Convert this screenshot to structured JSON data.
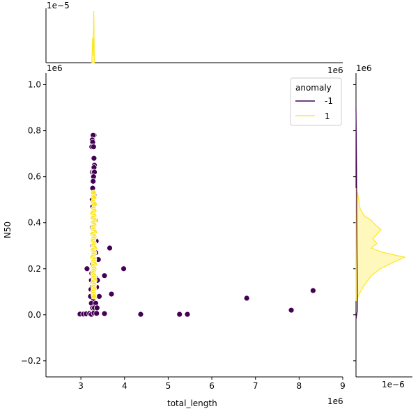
{
  "chart_data": {
    "type": "scatter",
    "xlabel": "total_length",
    "ylabel": "N50",
    "x_offset_text": "1e6",
    "y_offset_text": "1e6",
    "top_marginal_offset_text": "1e−5",
    "top_marginal_x_offset_text": "1e6",
    "right_marginal_offset_text": "1e−6",
    "right_marginal_y_offset_text": "1e6",
    "xlim": [
      2.2,
      9.0
    ],
    "ylim": [
      -0.27,
      1.05
    ],
    "xticks": [
      3,
      4,
      5,
      6,
      7,
      8,
      9
    ],
    "yticks": [
      -0.2,
      0.0,
      0.2,
      0.4,
      0.6,
      0.8,
      1.0
    ],
    "xtick_labels": [
      "3",
      "4",
      "5",
      "6",
      "7",
      "8",
      "9"
    ],
    "ytick_labels": [
      "−0.2",
      "0.0",
      "0.2",
      "0.4",
      "0.6",
      "0.8",
      "1.0"
    ],
    "legend": {
      "title": "anomaly",
      "placement": "top-right",
      "entries": [
        {
          "label": "-1",
          "color": "#440154"
        },
        {
          "label": "1",
          "color": "#fde725"
        }
      ]
    },
    "series": [
      {
        "name": "-1",
        "color": "#440154",
        "points": [
          [
            3.3,
            0.78
          ],
          [
            3.28,
            0.78
          ],
          [
            3.26,
            0.76
          ],
          [
            3.27,
            0.75
          ],
          [
            3.25,
            0.73
          ],
          [
            3.29,
            0.73
          ],
          [
            3.3,
            0.68
          ],
          [
            3.31,
            0.65
          ],
          [
            3.3,
            0.64
          ],
          [
            3.26,
            0.62
          ],
          [
            3.29,
            0.62
          ],
          [
            3.31,
            0.62
          ],
          [
            3.29,
            0.6
          ],
          [
            3.28,
            0.58
          ],
          [
            3.27,
            0.55
          ],
          [
            3.3,
            0.52
          ],
          [
            3.26,
            0.5
          ],
          [
            3.31,
            0.48
          ],
          [
            3.27,
            0.47
          ],
          [
            3.31,
            0.45
          ],
          [
            3.29,
            0.44
          ],
          [
            3.33,
            0.41
          ],
          [
            3.26,
            0.38
          ],
          [
            3.3,
            0.33
          ],
          [
            3.35,
            0.32
          ],
          [
            3.27,
            0.3
          ],
          [
            3.32,
            0.29
          ],
          [
            3.34,
            0.27
          ],
          [
            3.28,
            0.26
          ],
          [
            3.36,
            0.24
          ],
          [
            3.27,
            0.22
          ],
          [
            3.31,
            0.2
          ],
          [
            3.14,
            0.2
          ],
          [
            3.25,
            0.18
          ],
          [
            3.33,
            0.16
          ],
          [
            3.24,
            0.15
          ],
          [
            3.3,
            0.14
          ],
          [
            3.36,
            0.12
          ],
          [
            3.26,
            0.12
          ],
          [
            3.23,
            0.11
          ],
          [
            3.29,
            0.1
          ],
          [
            3.22,
            0.08
          ],
          [
            3.32,
            0.08
          ],
          [
            3.28,
            0.06
          ],
          [
            3.24,
            0.05
          ],
          [
            3.34,
            0.05
          ],
          [
            3.27,
            0.03
          ],
          [
            3.31,
            0.03
          ],
          [
            3.37,
            0.03
          ],
          [
            3.42,
            0.08
          ],
          [
            3.54,
            0.17
          ],
          [
            3.66,
            0.29
          ],
          [
            3.7,
            0.09
          ],
          [
            3.98,
            0.2
          ],
          [
            3.4,
            0.24
          ],
          [
            3.38,
            0.15
          ],
          [
            2.98,
            0.003
          ],
          [
            3.06,
            0.003
          ],
          [
            3.12,
            0.004
          ],
          [
            3.2,
            0.006
          ],
          [
            3.24,
            0.002
          ],
          [
            3.3,
            0.008
          ],
          [
            3.36,
            0.006
          ],
          [
            3.54,
            0.005
          ],
          [
            4.37,
            0.002
          ],
          [
            5.26,
            0.002
          ],
          [
            5.44,
            0.002
          ],
          [
            6.8,
            0.072
          ],
          [
            7.82,
            0.02
          ],
          [
            8.32,
            0.105
          ]
        ]
      },
      {
        "name": "1",
        "color": "#fde725",
        "points": [
          [
            3.29,
            0.53
          ],
          [
            3.3,
            0.51
          ],
          [
            3.28,
            0.49
          ],
          [
            3.31,
            0.48
          ],
          [
            3.29,
            0.46
          ],
          [
            3.3,
            0.45
          ],
          [
            3.27,
            0.44
          ],
          [
            3.3,
            0.43
          ],
          [
            3.28,
            0.42
          ],
          [
            3.31,
            0.41
          ],
          [
            3.29,
            0.4
          ],
          [
            3.3,
            0.39
          ],
          [
            3.28,
            0.38
          ],
          [
            3.29,
            0.37
          ],
          [
            3.31,
            0.36
          ],
          [
            3.27,
            0.35
          ],
          [
            3.3,
            0.34
          ],
          [
            3.29,
            0.33
          ],
          [
            3.28,
            0.32
          ],
          [
            3.3,
            0.31
          ],
          [
            3.29,
            0.3
          ],
          [
            3.31,
            0.29
          ],
          [
            3.28,
            0.28
          ],
          [
            3.3,
            0.27
          ],
          [
            3.29,
            0.26
          ],
          [
            3.27,
            0.25
          ],
          [
            3.3,
            0.24
          ],
          [
            3.29,
            0.23
          ],
          [
            3.31,
            0.22
          ],
          [
            3.28,
            0.21
          ],
          [
            3.3,
            0.2
          ],
          [
            3.29,
            0.19
          ],
          [
            3.28,
            0.18
          ],
          [
            3.3,
            0.17
          ],
          [
            3.29,
            0.16
          ],
          [
            3.31,
            0.15
          ],
          [
            3.28,
            0.14
          ],
          [
            3.3,
            0.13
          ],
          [
            3.29,
            0.12
          ],
          [
            3.3,
            0.11
          ],
          [
            3.28,
            0.1
          ],
          [
            3.29,
            0.09
          ],
          [
            3.3,
            0.08
          ]
        ]
      }
    ]
  }
}
